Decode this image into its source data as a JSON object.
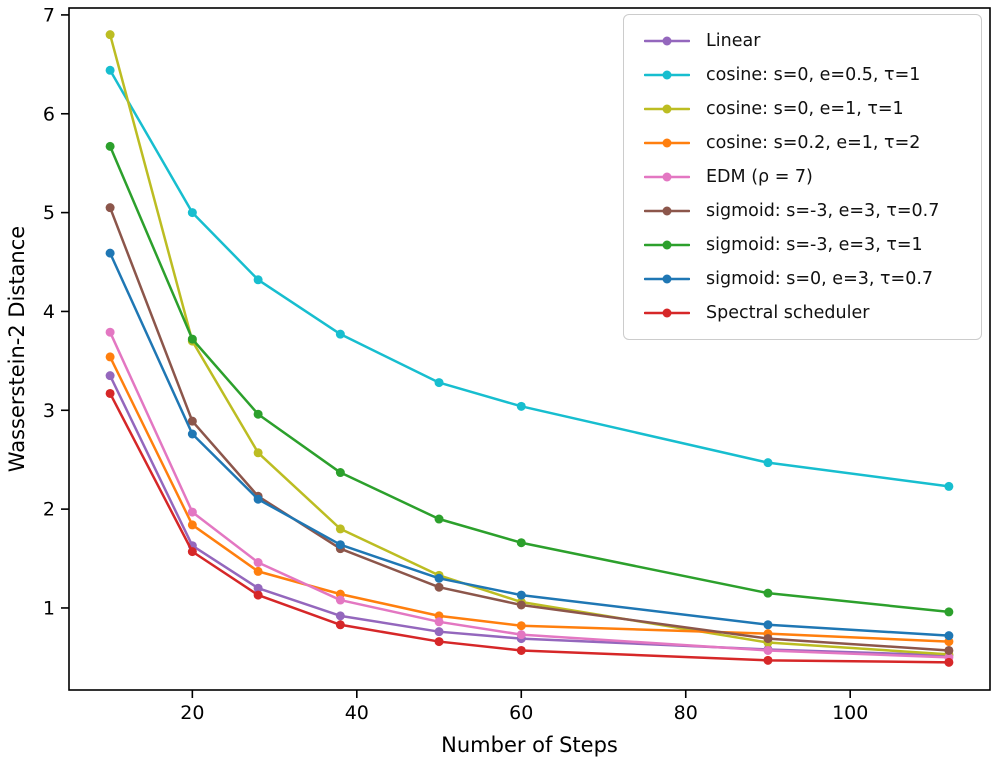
{
  "figure": {
    "background": "#ffffff",
    "spine_color": "#000000",
    "tick_label_color": "#000000"
  },
  "chart_data": {
    "type": "line",
    "title": "",
    "xlabel": "Number of Steps",
    "ylabel": "Wasserstein-2 Distance",
    "x": [
      10,
      20,
      28,
      38,
      50,
      60,
      90,
      112
    ],
    "series": [
      {
        "name": "Linear",
        "color": "#9467bd",
        "values": [
          3.35,
          1.63,
          1.2,
          0.92,
          0.76,
          0.69,
          0.58,
          0.52
        ]
      },
      {
        "name": "cosine: s=0, e=0.5, τ=1",
        "color": "#17becf",
        "values": [
          6.44,
          5.0,
          4.32,
          3.77,
          3.28,
          3.04,
          2.47,
          2.23
        ]
      },
      {
        "name": "cosine: s=0, e=1, τ=1",
        "color": "#bcbd22",
        "values": [
          6.8,
          3.7,
          2.57,
          1.8,
          1.33,
          1.06,
          0.65,
          0.53
        ]
      },
      {
        "name": "cosine: s=0.2, e=1, τ=2",
        "color": "#ff7f0e",
        "values": [
          3.54,
          1.84,
          1.37,
          1.14,
          0.92,
          0.82,
          0.74,
          0.66
        ]
      },
      {
        "name": "EDM (ρ = 7)",
        "color": "#e377c2",
        "values": [
          3.79,
          1.97,
          1.46,
          1.08,
          0.86,
          0.73,
          0.57,
          0.5
        ]
      },
      {
        "name": "sigmoid: s=-3, e=3, τ=0.7",
        "color": "#8c564b",
        "values": [
          5.05,
          2.89,
          2.13,
          1.6,
          1.21,
          1.03,
          0.69,
          0.57
        ]
      },
      {
        "name": "sigmoid: s=-3, e=3, τ=1",
        "color": "#2ca02c",
        "values": [
          5.67,
          3.72,
          2.96,
          2.37,
          1.9,
          1.66,
          1.15,
          0.96
        ]
      },
      {
        "name": "sigmoid: s=0, e=3, τ=0.7",
        "color": "#1f77b4",
        "values": [
          4.59,
          2.76,
          2.1,
          1.64,
          1.3,
          1.13,
          0.83,
          0.72
        ]
      },
      {
        "name": "Spectral scheduler",
        "color": "#d62728",
        "values": [
          3.17,
          1.57,
          1.13,
          0.83,
          0.66,
          0.57,
          0.47,
          0.45
        ]
      }
    ],
    "xticks": [
      20,
      40,
      60,
      80,
      100
    ],
    "yticks": [
      1,
      2,
      3,
      4,
      5,
      6,
      7
    ],
    "xlim": [
      5,
      117
    ],
    "ylim": [
      0.17,
      7.07
    ],
    "grid": false,
    "legend_position": "upper right",
    "marker": "circle"
  }
}
